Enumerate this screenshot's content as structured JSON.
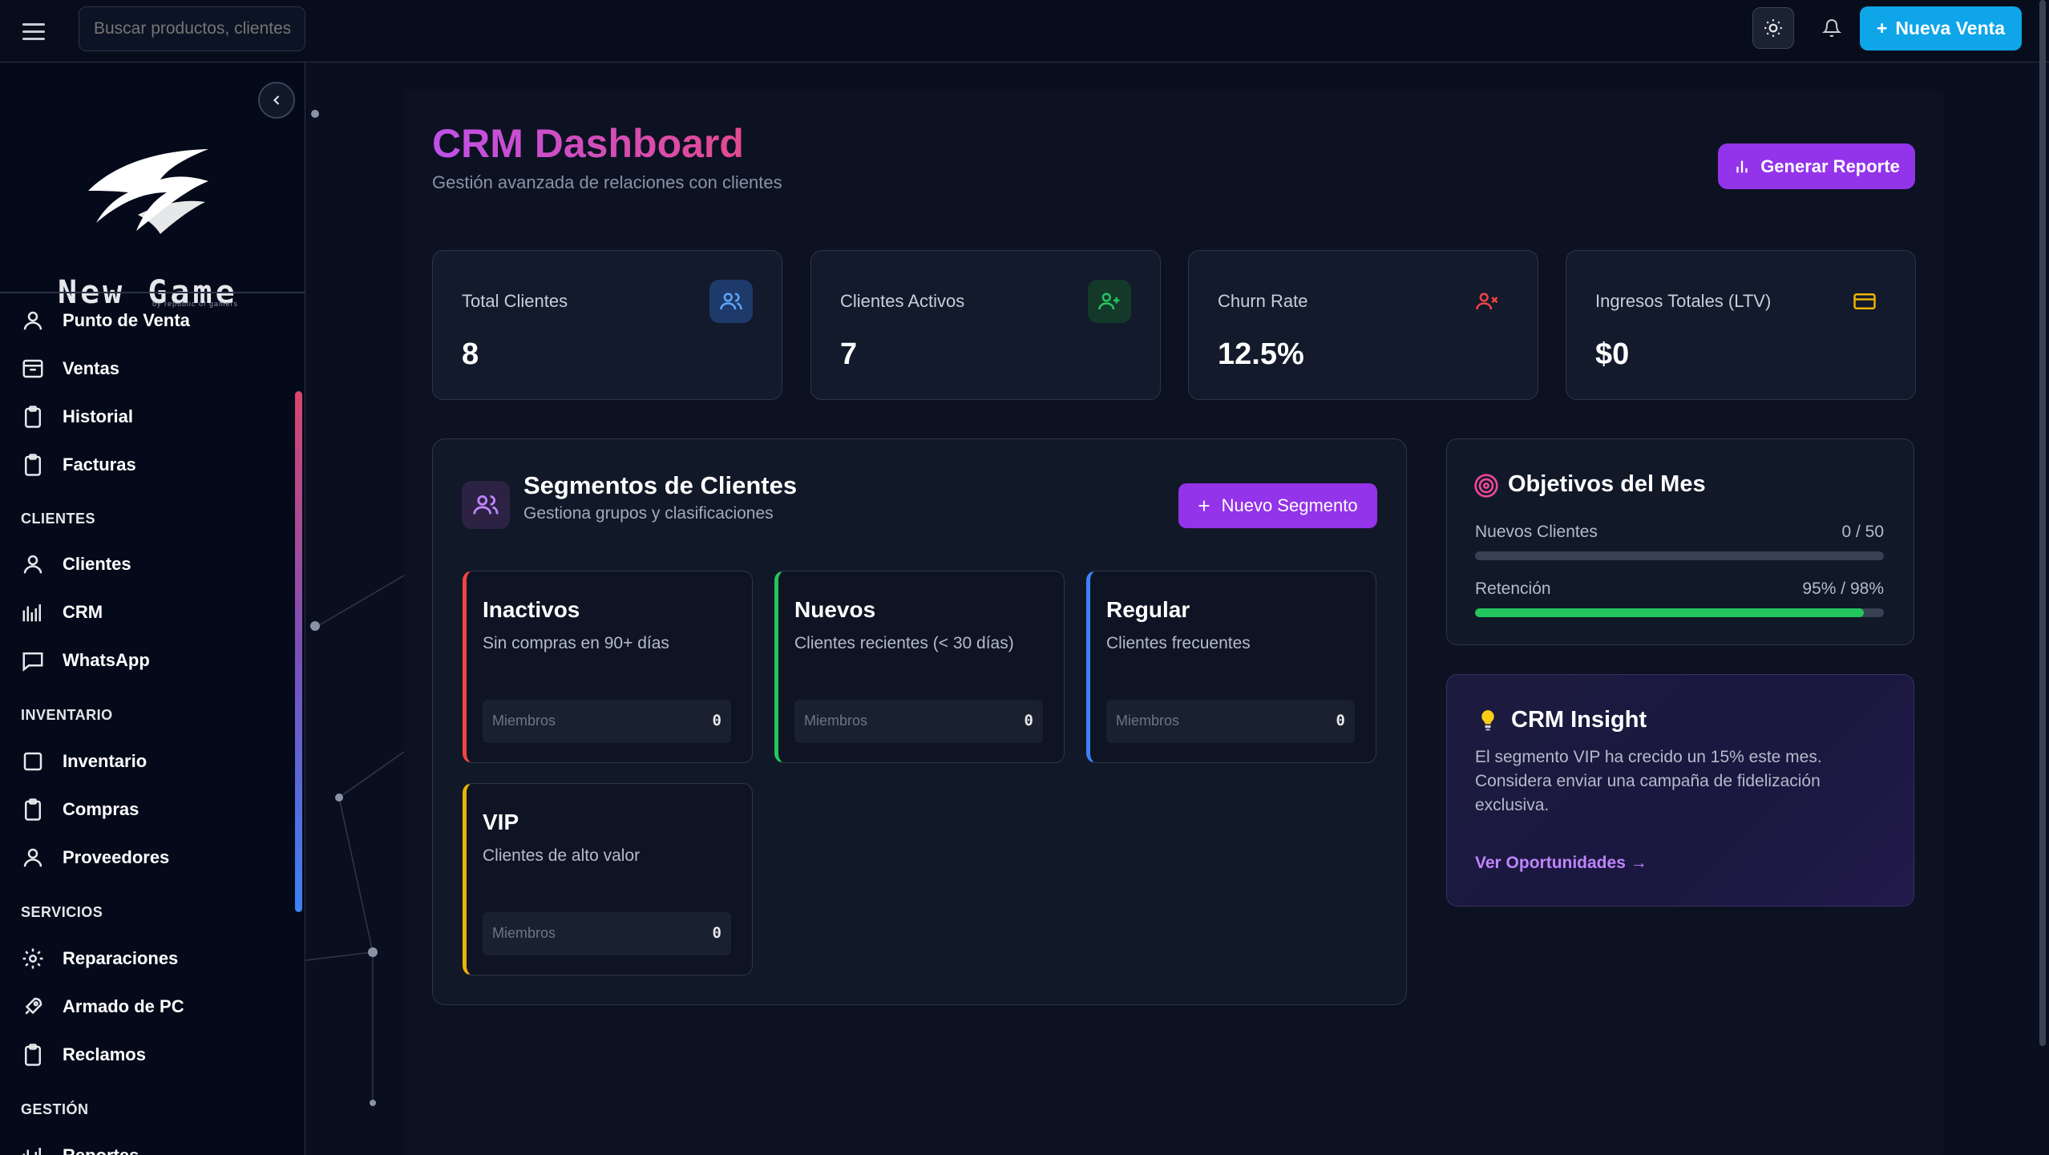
{
  "topbar": {
    "search_placeholder": "Buscar productos, clientes",
    "new_sale_label": "Nueva Venta",
    "plus_glyph": "+"
  },
  "sidebar": {
    "brand_name": "New Game",
    "brand_tagline": "by republic of gamers",
    "items": [
      {
        "label": "Punto de Venta",
        "icon": "user-icon"
      },
      {
        "label": "Ventas",
        "icon": "box-icon"
      },
      {
        "label": "Historial",
        "icon": "clipboard-icon"
      },
      {
        "label": "Facturas",
        "icon": "clipboard-icon"
      }
    ],
    "section_clientes": "CLIENTES",
    "clientes_items": [
      {
        "label": "Clientes",
        "icon": "user-icon"
      },
      {
        "label": "CRM",
        "icon": "bar-chart-icon"
      },
      {
        "label": "WhatsApp",
        "icon": "message-icon"
      }
    ],
    "section_inventario": "INVENTARIO",
    "inventario_items": [
      {
        "label": "Inventario",
        "icon": "square-icon"
      },
      {
        "label": "Compras",
        "icon": "clipboard-icon"
      },
      {
        "label": "Proveedores",
        "icon": "user-icon"
      }
    ],
    "section_servicios": "SERVICIOS",
    "servicios_items": [
      {
        "label": "Reparaciones",
        "icon": "gear-icon"
      },
      {
        "label": "Armado de PC",
        "icon": "rocket-icon"
      },
      {
        "label": "Reclamos",
        "icon": "clipboard-icon"
      }
    ],
    "section_gestion": "GESTIÓN",
    "gestion_items": [
      {
        "label": "Reportes",
        "icon": "bar-chart-icon"
      }
    ]
  },
  "header": {
    "title": "CRM Dashboard",
    "subtitle": "Gestión avanzada de relaciones con clientes",
    "report_button": "Generar Reporte"
  },
  "stats": [
    {
      "label": "Total Clientes",
      "value": "8",
      "icon": "users-icon",
      "color": "#3b82f6"
    },
    {
      "label": "Clientes Activos",
      "value": "7",
      "icon": "user-plus-icon",
      "color": "#22c55e"
    },
    {
      "label": "Churn Rate",
      "value": "12.5%",
      "icon": "user-x-icon",
      "color": "#ef4444"
    },
    {
      "label": "Ingresos Totales (LTV)",
      "value": "$0",
      "icon": "credit-card-icon",
      "color": "#eab308"
    }
  ],
  "segments": {
    "title": "Segmentos de Clientes",
    "subtitle": "Gestiona grupos y clasificaciones",
    "new_button": "Nuevo Segmento",
    "members_label": "Miembros",
    "cards": [
      {
        "name": "Inactivos",
        "desc": "Sin compras en 90+ días",
        "members": "0",
        "color": "#ef4444"
      },
      {
        "name": "Nuevos",
        "desc": "Clientes recientes (< 30 días)",
        "members": "0",
        "color": "#22c55e"
      },
      {
        "name": "Regular",
        "desc": "Clientes frecuentes",
        "members": "0",
        "color": "#3b82f6"
      },
      {
        "name": "VIP",
        "desc": "Clientes de alto valor",
        "members": "0",
        "color": "#eab308"
      }
    ]
  },
  "goals": {
    "title": "Objetivos del Mes",
    "rows": [
      {
        "label": "Nuevos Clientes",
        "value": "0 / 50",
        "progress": 0.0
      },
      {
        "label": "Retención",
        "value": "95% / 98%",
        "progress": 0.95
      }
    ]
  },
  "insight": {
    "title": "CRM Insight",
    "text": "El segmento VIP ha crecido un 15% este mes. Considera enviar una campaña de fidelización exclusiva.",
    "link": "Ver Oportunidades →"
  },
  "colors": {
    "accent_purple": "#9333ea",
    "accent_blue": "#0ea5e9",
    "title_gradient_start": "#c050e8",
    "title_gradient_end": "#e34a8f"
  }
}
